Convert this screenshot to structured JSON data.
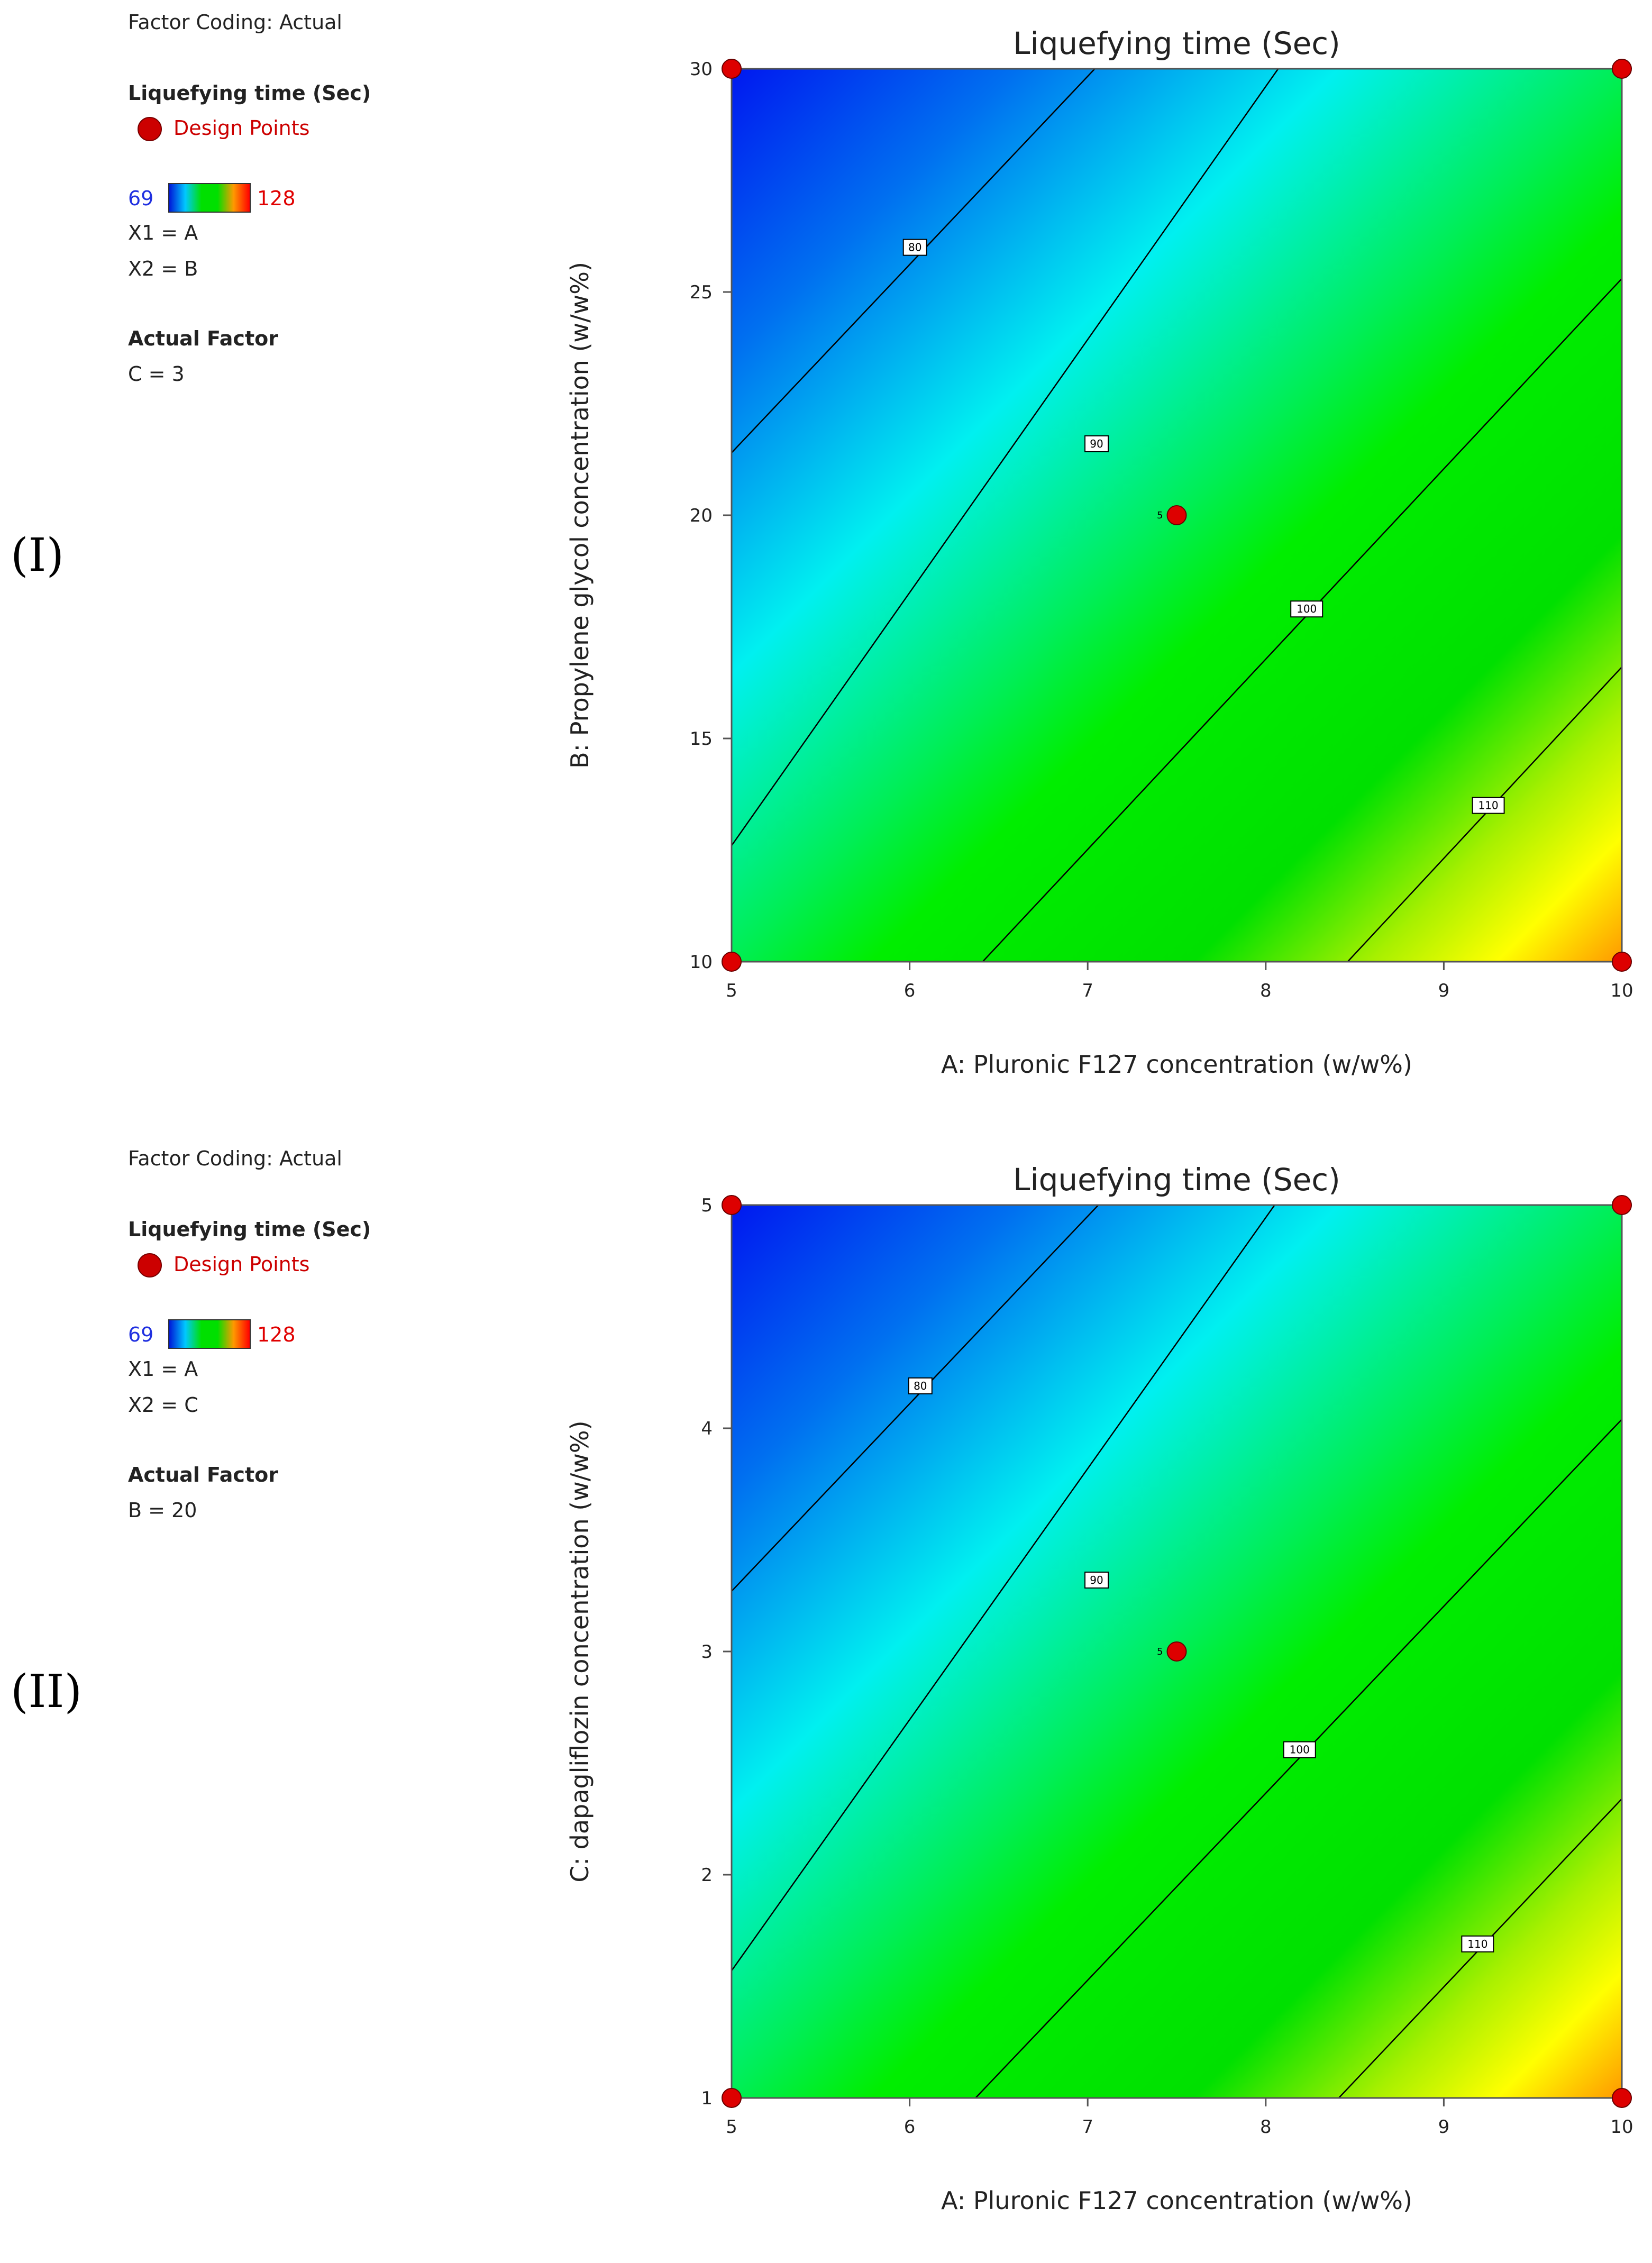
{
  "chart_data": [
    {
      "type": "contour",
      "panel_label": "(I)",
      "title": "Liquefying time (Sec)",
      "xlabel": "A: Pluronic F127 concentration (w/w%)",
      "ylabel": "B: Propylene glycol concentration (w/w%)",
      "xlim": [
        5,
        10
      ],
      "ylim": [
        10,
        30
      ],
      "xticks": [
        5,
        6,
        7,
        8,
        9,
        10
      ],
      "yticks": [
        10,
        15,
        20,
        25,
        30
      ],
      "zlim": [
        69,
        128
      ],
      "contours": [
        {
          "level": 80,
          "label": "80",
          "label_at": [
            6.03,
            26.0
          ],
          "points": [
            [
              5.0,
              21.4
            ],
            [
              7.04,
              30.0
            ]
          ]
        },
        {
          "level": 90,
          "label": "90",
          "label_at": [
            7.05,
            21.6
          ],
          "points": [
            [
              5.0,
              12.6
            ],
            [
              8.07,
              30.0
            ]
          ]
        },
        {
          "level": 100,
          "label": "100",
          "label_at": [
            8.23,
            17.9
          ],
          "points": [
            [
              6.41,
              10.0
            ],
            [
              10.0,
              25.3
            ]
          ]
        },
        {
          "level": 110,
          "label": "110",
          "label_at": [
            9.25,
            13.5
          ],
          "points": [
            [
              8.46,
              10.0
            ],
            [
              10.0,
              16.6
            ]
          ]
        }
      ],
      "design_points": [
        {
          "x": 5,
          "y": 30
        },
        {
          "x": 10,
          "y": 30
        },
        {
          "x": 7.5,
          "y": 20,
          "label": "5"
        },
        {
          "x": 5,
          "y": 10
        },
        {
          "x": 10,
          "y": 10
        }
      ],
      "legend": {
        "factor_coding": "Factor Coding: Actual",
        "response": "Liquefying time (Sec)",
        "design_points": "Design Points",
        "min": "69",
        "max": "128",
        "x1": "X1 = A",
        "x2": "X2 = B",
        "actual_factor_heading": "Actual Factor",
        "actual_factor": "C = 3"
      }
    },
    {
      "type": "contour",
      "panel_label": "(II)",
      "title": "Liquefying time (Sec)",
      "xlabel": "A: Pluronic F127 concentration (w/w%)",
      "ylabel": "C: dapagliflozin concentration (w/w%)",
      "xlim": [
        5,
        10
      ],
      "ylim": [
        1,
        5
      ],
      "xticks": [
        5,
        6,
        7,
        8,
        9,
        10
      ],
      "yticks": [
        1,
        2,
        3,
        4,
        5
      ],
      "zlim": [
        69,
        128
      ],
      "contours": [
        {
          "level": 80,
          "label": "80",
          "label_at": [
            6.06,
            4.19
          ],
          "points": [
            [
              5.0,
              3.27
            ],
            [
              7.06,
              5.0
            ]
          ]
        },
        {
          "level": 90,
          "label": "90",
          "label_at": [
            7.05,
            3.32
          ],
          "points": [
            [
              5.0,
              1.57
            ],
            [
              8.05,
              5.0
            ]
          ]
        },
        {
          "level": 100,
          "label": "100",
          "label_at": [
            8.19,
            2.56
          ],
          "points": [
            [
              6.37,
              1.0
            ],
            [
              10.0,
              4.04
            ]
          ]
        },
        {
          "level": 110,
          "label": "110",
          "label_at": [
            9.19,
            1.69
          ],
          "points": [
            [
              8.41,
              1.0
            ],
            [
              10.0,
              2.34
            ]
          ]
        }
      ],
      "design_points": [
        {
          "x": 5,
          "y": 5
        },
        {
          "x": 10,
          "y": 5
        },
        {
          "x": 7.5,
          "y": 3,
          "label": "5"
        },
        {
          "x": 5,
          "y": 1
        },
        {
          "x": 10,
          "y": 1
        }
      ],
      "legend": {
        "factor_coding": "Factor Coding: Actual",
        "response": "Liquefying time (Sec)",
        "design_points": "Design Points",
        "min": "69",
        "max": "128",
        "x1": "X1 = A",
        "x2": "X2 = C",
        "actual_factor_heading": "Actual Factor",
        "actual_factor": "B = 20"
      }
    }
  ]
}
